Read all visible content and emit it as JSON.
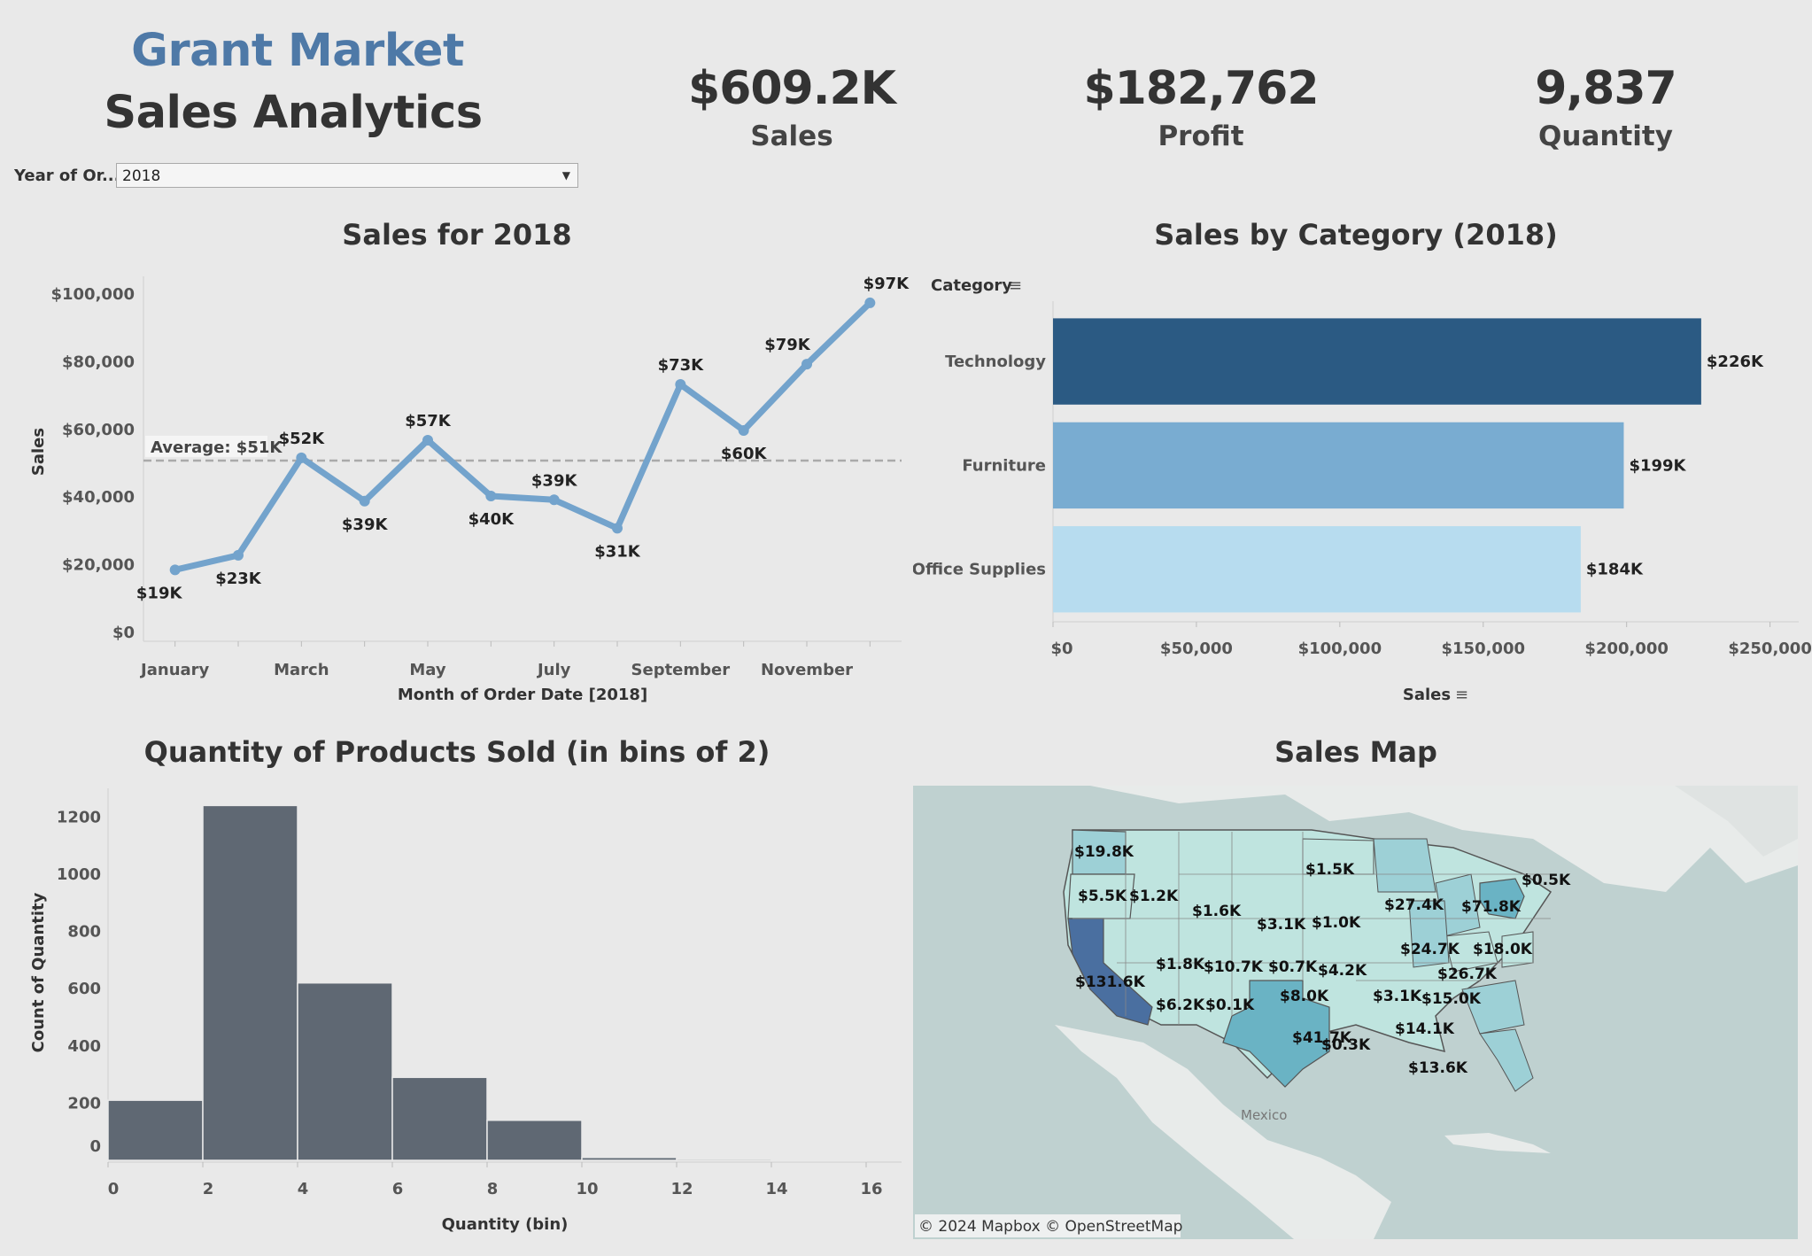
{
  "header": {
    "brand": "Grant Market",
    "subtitle": "Sales Analytics"
  },
  "kpis": [
    {
      "value": "$609.2K",
      "label": "Sales"
    },
    {
      "value": "$182,762",
      "label": "Profit"
    },
    {
      "value": "9,837",
      "label": "Quantity"
    }
  ],
  "filter": {
    "label": "Year of Or...",
    "value": "2018",
    "arrow_icon": "dropdown-arrow-icon"
  },
  "line_chart": {
    "title": "Sales for 2018"
  },
  "bar_chart": {
    "title": "Sales by Category (2018)"
  },
  "histogram": {
    "title": "Quantity of Products Sold (in bins of 2)"
  },
  "map": {
    "title": "Sales Map",
    "country_label": "Mexico",
    "attribution": "© 2024 Mapbox  © OpenStreetMap",
    "state_labels": [
      "$19.8K",
      "$5.5K",
      "$1.2K",
      "$1.6K",
      "$1.5K",
      "$0.5K",
      "$27.4K",
      "$71.8K",
      "$3.1K",
      "$1.0K",
      "$24.7K",
      "$18.0K",
      "$1.8K",
      "$10.7K",
      "$0.7K",
      "$4.2K",
      "$26.7K",
      "$131.6K",
      "$8.0K",
      "$3.1K",
      "$15.0K",
      "$6.2K",
      "$0.1K",
      "$14.1K",
      "$41.7K",
      "$0.3K",
      "$13.6K"
    ],
    "colors": {
      "water": "#bfd1d0",
      "land": "#e8ebea",
      "low": "#bfe4df",
      "mid": "#9dd0d6",
      "high": "#6ab3c4",
      "max": "#4a6fa0"
    }
  },
  "chart_data": [
    {
      "type": "line",
      "title": "Sales for 2018",
      "xlabel": "Month of Order Date [2018]",
      "ylabel": "Sales",
      "ylim": [
        0,
        100000
      ],
      "yticks": [
        "$0",
        "$20,000",
        "$40,000",
        "$60,000",
        "$80,000",
        "$100,000"
      ],
      "ytick_values": [
        0,
        20000,
        40000,
        60000,
        80000,
        100000
      ],
      "x_tick_labels": [
        "January",
        "March",
        "May",
        "July",
        "September",
        "November"
      ],
      "x_tick_months": [
        0,
        2,
        4,
        6,
        8,
        10
      ],
      "months": [
        "January",
        "February",
        "March",
        "April",
        "May",
        "June",
        "July",
        "August",
        "September",
        "October",
        "November",
        "December"
      ],
      "values": [
        18500,
        22800,
        51600,
        38800,
        56800,
        40300,
        39200,
        30800,
        73300,
        59700,
        79300,
        97400
      ],
      "point_labels": [
        "$19K",
        "$23K",
        "$52K",
        "$39K",
        "$57K",
        "$40K",
        "$39K",
        "$31K",
        "$73K",
        "$60K",
        "$79K",
        "$97K"
      ],
      "average": 50800,
      "average_label": "Average: $51K",
      "color": "#73a3cc"
    },
    {
      "type": "bar",
      "orientation": "horizontal",
      "title": "Sales by Category (2018)",
      "xlabel": "Sales",
      "ylabel": "Category",
      "xlim": [
        0,
        260000
      ],
      "xticks": [
        "$0",
        "$50,000",
        "$100,000",
        "$150,000",
        "$200,000",
        "$250,000"
      ],
      "xtick_values": [
        0,
        50000,
        100000,
        150000,
        200000,
        250000
      ],
      "categories": [
        "Technology",
        "Furniture",
        "Office Supplies"
      ],
      "values": [
        226000,
        199000,
        184000
      ],
      "value_labels": [
        "$226K",
        "$199K",
        "$184K"
      ],
      "colors": [
        "#2b5a83",
        "#79acd1",
        "#b7dcef"
      ]
    },
    {
      "type": "bar",
      "title": "Quantity of Products Sold (in bins of 2)",
      "xlabel": "Quantity (bin)",
      "ylabel": "Count of Quantity",
      "ylim": [
        0,
        1300
      ],
      "yticks": [
        "0",
        "200",
        "400",
        "600",
        "800",
        "1000",
        "1200"
      ],
      "ytick_values": [
        0,
        200,
        400,
        600,
        800,
        1000,
        1200
      ],
      "xticks": [
        "0",
        "2",
        "4",
        "6",
        "8",
        "10",
        "12",
        "14",
        "16"
      ],
      "bin_starts": [
        0,
        2,
        4,
        6,
        8,
        10,
        12,
        14
      ],
      "values": [
        210,
        1240,
        620,
        290,
        140,
        10,
        5,
        2
      ],
      "color": "#5f6873"
    }
  ]
}
